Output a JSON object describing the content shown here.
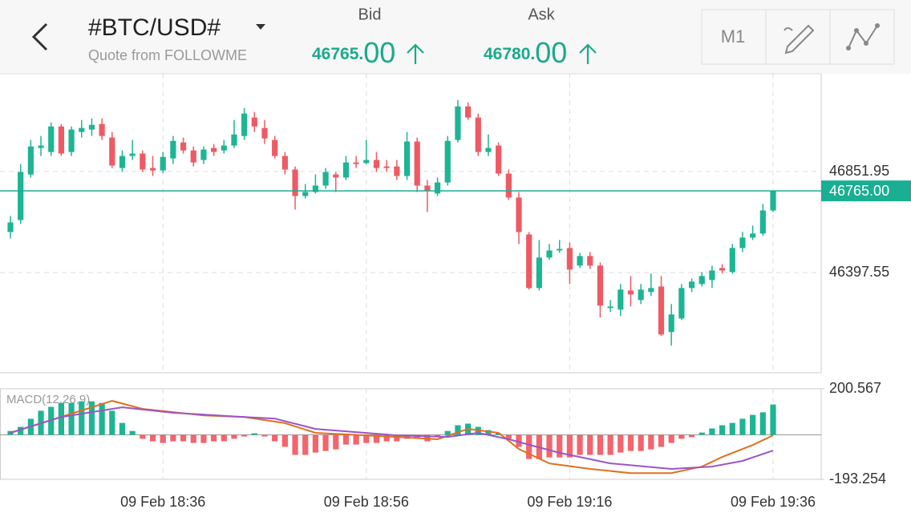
{
  "header": {
    "symbol": "#BTC/USD#",
    "source": "Quote from FOLLOWME",
    "bid": {
      "label": "Bid",
      "price_main": "46765.",
      "price_pip": "00"
    },
    "ask": {
      "label": "Ask",
      "price_main": "46780.",
      "price_pip": "00"
    },
    "buttons": [
      "M1"
    ]
  },
  "chart_data": [
    {
      "type": "candlestick",
      "up_color": "#1db594",
      "down_color": "#ee5a64",
      "grid": true,
      "ylim": [
        45947,
        47292
      ],
      "yticks": [
        46397.55,
        46851.95
      ],
      "current_price": {
        "value": 46765,
        "label": "46765.00"
      },
      "current_color": "#1aae93",
      "categories": [
        null,
        null,
        null,
        null,
        null,
        null,
        null,
        null,
        null,
        null,
        null,
        null,
        null,
        null,
        null,
        "09 Feb 18:36",
        null,
        null,
        null,
        null,
        null,
        null,
        null,
        null,
        null,
        null,
        null,
        null,
        null,
        null,
        null,
        null,
        null,
        null,
        null,
        "09 Feb 18:56",
        null,
        null,
        null,
        null,
        null,
        null,
        null,
        null,
        null,
        null,
        null,
        null,
        null,
        null,
        null,
        null,
        null,
        null,
        null,
        "09 Feb 19:16",
        null,
        null,
        null,
        null,
        null,
        null,
        null,
        null,
        null,
        null,
        null,
        null,
        null,
        null,
        null,
        null,
        null,
        null,
        null,
        "09 Feb 19:36"
      ],
      "open": [
        46580,
        46634,
        46839,
        46958,
        46940,
        47055,
        46940,
        47030,
        47041,
        47066,
        47005,
        46868,
        46922,
        46933,
        46868,
        46857,
        46911,
        46983,
        46947,
        46904,
        46958,
        46947,
        46969,
        47012,
        47095,
        47048,
        46994,
        46922,
        46861,
        46742,
        46760,
        46789,
        46839,
        46825,
        46893,
        46890,
        46904,
        46875,
        46875,
        46832,
        46987,
        46789,
        46753,
        46803,
        46994,
        47145,
        47095,
        46940,
        46969,
        46843,
        46735,
        46569,
        46328,
        46465,
        46497,
        46508,
        46429,
        46472,
        46429,
        46238,
        46231,
        46317,
        46274,
        46310,
        46335,
        46130,
        46191,
        46328,
        46346,
        46364,
        46418,
        46400,
        46508,
        46555,
        46573,
        46677
      ],
      "high": [
        46652,
        46886,
        46994,
        47012,
        47073,
        47066,
        47055,
        47084,
        47091,
        47091,
        47030,
        46947,
        46994,
        46947,
        46922,
        46940,
        47012,
        47005,
        46965,
        46965,
        46976,
        46994,
        47084,
        47138,
        47120,
        47084,
        47012,
        46940,
        46875,
        46796,
        46839,
        46868,
        46850,
        46922,
        46922,
        46994,
        46940,
        46904,
        46904,
        47030,
        47005,
        46814,
        46825,
        47012,
        47174,
        47163,
        47113,
        47019,
        46983,
        46861,
        46760,
        46580,
        46544,
        46526,
        46544,
        46533,
        46486,
        46490,
        46443,
        46274,
        46346,
        46382,
        46346,
        46393,
        46382,
        46256,
        46346,
        46371,
        46400,
        46429,
        46436,
        46526,
        46580,
        46609,
        46706,
        46765
      ],
      "low": [
        46551,
        46616,
        46825,
        46922,
        46922,
        46922,
        46922,
        47005,
        47012,
        46994,
        46868,
        46850,
        46904,
        46850,
        46832,
        46846,
        46886,
        46933,
        46875,
        46886,
        46922,
        46933,
        46958,
        46994,
        47030,
        46976,
        46911,
        46839,
        46681,
        46731,
        46753,
        46774,
        46760,
        46814,
        46868,
        46886,
        46850,
        46850,
        46814,
        46814,
        46760,
        46670,
        46742,
        46789,
        46983,
        47084,
        46922,
        46922,
        46832,
        46724,
        46526,
        46321,
        46317,
        46454,
        46486,
        46346,
        46418,
        46414,
        46195,
        46220,
        46202,
        46245,
        46256,
        46292,
        46112,
        46069,
        46184,
        46310,
        46335,
        46328,
        46393,
        46393,
        46490,
        46544,
        46562,
        46670
      ],
      "close": [
        46623,
        46850,
        46965,
        46969,
        47055,
        46933,
        47041,
        47048,
        47062,
        47012,
        46879,
        46922,
        46933,
        46861,
        46857,
        46918,
        46990,
        46947,
        46893,
        46951,
        46940,
        46969,
        47019,
        47113,
        47055,
        47001,
        46922,
        46861,
        46742,
        46760,
        46789,
        46850,
        46825,
        46893,
        46886,
        46904,
        46868,
        46868,
        46832,
        46987,
        46789,
        46767,
        46803,
        46990,
        47145,
        47095,
        46940,
        46958,
        46843,
        46735,
        46580,
        46328,
        46465,
        46497,
        46504,
        46411,
        46472,
        46429,
        46249,
        46245,
        46321,
        46299,
        46321,
        46328,
        46119,
        46209,
        46328,
        46357,
        46382,
        46407,
        46407,
        46508,
        46555,
        46573,
        46677,
        46765
      ]
    },
    {
      "type": "macd",
      "label": "MACD(12,26,9)",
      "ylim": [
        -193.254,
        200.567
      ],
      "yticks": [
        200.567,
        -193.254
      ],
      "up_color": "#1db594",
      "down_color": "#f3646c",
      "histogram": [
        17,
        35,
        70,
        105,
        122,
        139,
        139,
        146,
        146,
        139,
        105,
        52,
        17,
        -17,
        -28,
        -35,
        -28,
        -28,
        -35,
        -35,
        -28,
        -28,
        -17,
        -7,
        7,
        -7,
        -28,
        -52,
        -87,
        -87,
        -77,
        -70,
        -63,
        -42,
        -42,
        -35,
        -35,
        -28,
        -28,
        -17,
        -17,
        -28,
        -10,
        17,
        42,
        49,
        35,
        21,
        7,
        -17,
        -52,
        -105,
        -105,
        -98,
        -98,
        -98,
        -87,
        -87,
        -87,
        -87,
        -77,
        -70,
        -70,
        -63,
        -52,
        -35,
        -17,
        -10,
        10,
        28,
        42,
        52,
        70,
        87,
        98,
        132
      ],
      "series": [
        {
          "color": "#e0701e",
          "x": [
            0,
            10,
            13,
            19,
            23,
            27,
            30,
            38,
            42,
            45,
            48,
            50,
            53,
            57,
            61,
            65,
            68,
            70,
            73,
            75
          ],
          "values": [
            9,
            148,
            113,
            85,
            78,
            51,
            9,
            -9,
            -19,
            26,
            9,
            -61,
            -124,
            -148,
            -166,
            -166,
            -138,
            -96,
            -44,
            -2
          ]
        },
        {
          "color": "#9a55c8",
          "x": [
            0,
            5,
            11,
            16,
            23,
            26,
            30,
            38,
            43,
            46,
            49,
            54,
            59,
            65,
            69,
            72,
            75
          ],
          "values": [
            9,
            78,
            120,
            96,
            78,
            71,
            26,
            -2,
            -9,
            9,
            -19,
            -78,
            -124,
            -148,
            -138,
            -113,
            -68
          ]
        }
      ]
    }
  ]
}
